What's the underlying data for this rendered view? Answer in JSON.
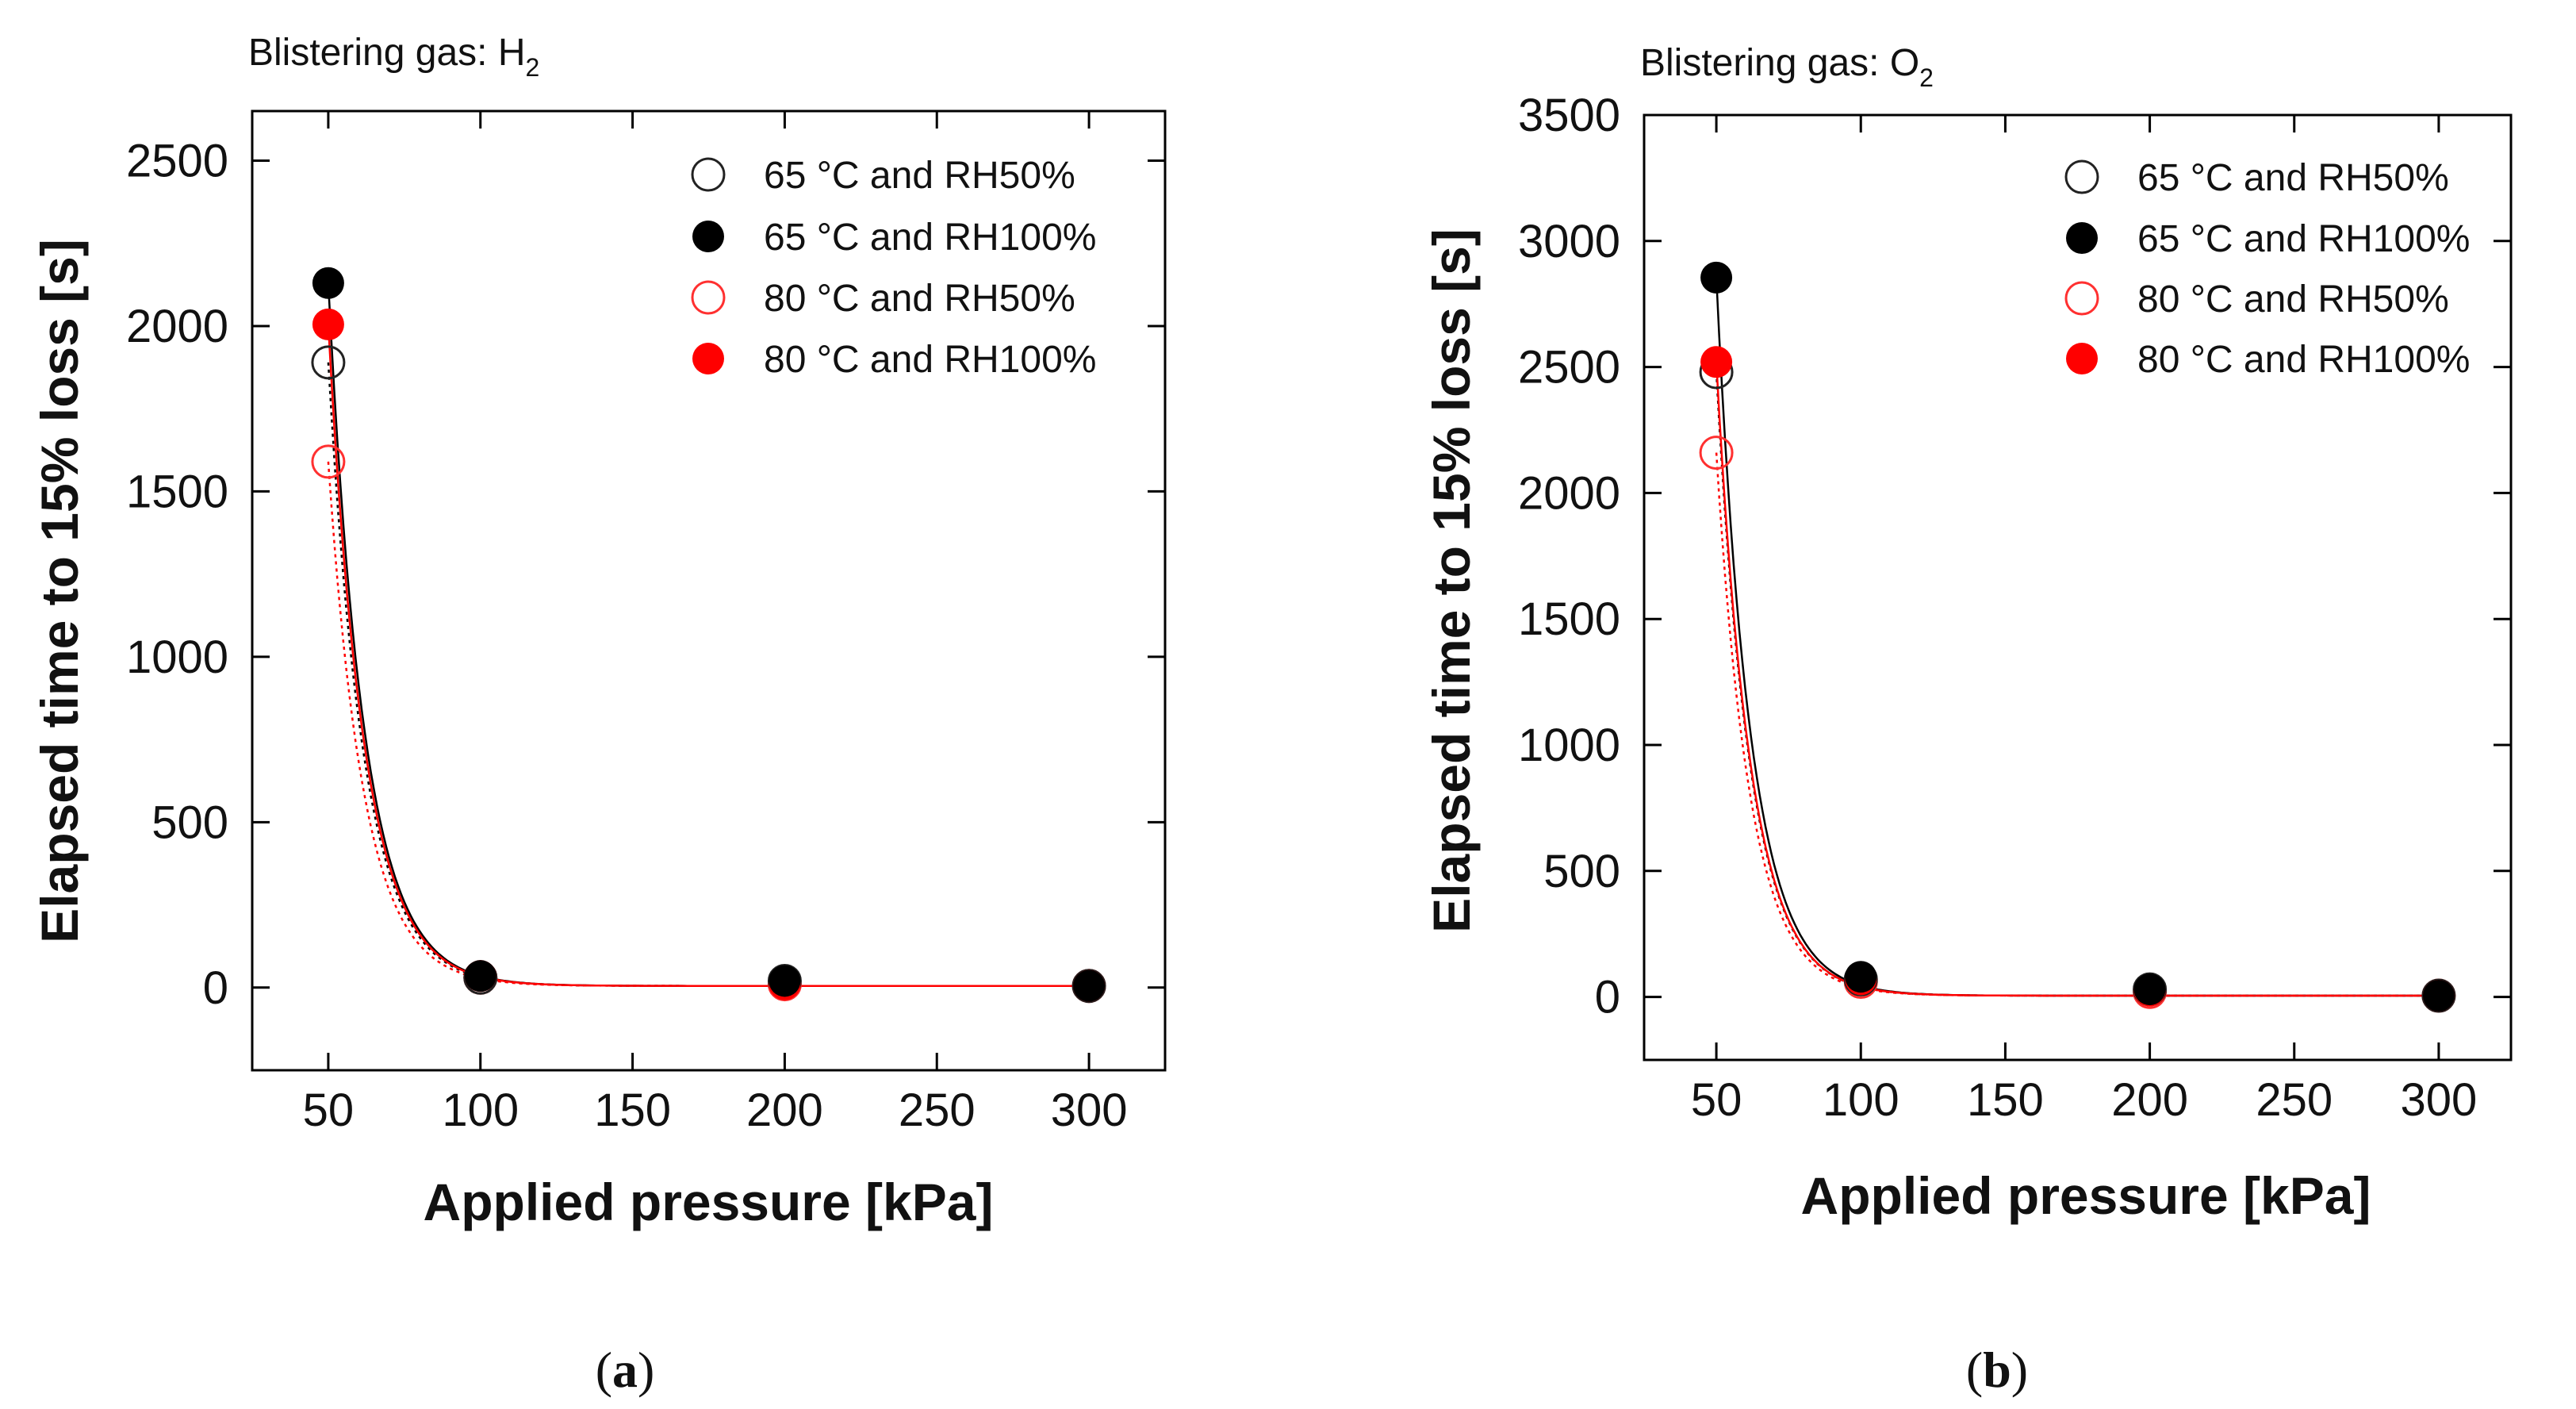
{
  "chart_data": [
    {
      "type": "scatter",
      "panel_label": "a",
      "gas_prefix": "Blistering gas: H",
      "gas_sub": "2",
      "xlabel": "Applied pressure [kPa]",
      "ylabel": "Elapsed time to 15% loss [s]",
      "xlim": [
        25,
        325
      ],
      "ylim": [
        -250,
        2650
      ],
      "xticks": [
        50,
        100,
        150,
        200,
        250,
        300
      ],
      "yticks": [
        0,
        500,
        1000,
        1500,
        2000,
        2500
      ],
      "series": [
        {
          "name": "65 °C and RH50%",
          "marker": "open",
          "color": "#000000",
          "x": [
            50,
            100,
            200,
            300
          ],
          "y": [
            1890,
            30,
            20,
            5
          ]
        },
        {
          "name": "65 °C and RH100%",
          "marker": "filled",
          "color": "#000000",
          "x": [
            50,
            100,
            200,
            300
          ],
          "y": [
            2130,
            35,
            20,
            5
          ]
        },
        {
          "name": "80 °C and RH50%",
          "marker": "open",
          "color": "#ff0000",
          "x": [
            50,
            100,
            200,
            300
          ],
          "y": [
            1590,
            30,
            10,
            5
          ]
        },
        {
          "name": "80 °C and RH100%",
          "marker": "filled",
          "color": "#ff0000",
          "x": [
            50,
            100,
            200,
            300
          ],
          "y": [
            2005,
            35,
            10,
            5
          ]
        }
      ]
    },
    {
      "type": "scatter",
      "panel_label": "b",
      "gas_prefix": "Blistering gas: O",
      "gas_sub": "2",
      "xlabel": "Applied pressure [kPa]",
      "ylabel": "Elapsed time to 15% loss [s]",
      "xlim": [
        25,
        325
      ],
      "ylim": [
        -250,
        3500
      ],
      "xticks": [
        50,
        100,
        150,
        200,
        250,
        300
      ],
      "yticks": [
        0,
        500,
        1000,
        1500,
        2000,
        2500,
        3000,
        3500
      ],
      "series": [
        {
          "name": "65 °C and RH50%",
          "marker": "open",
          "color": "#000000",
          "x": [
            50,
            100,
            200,
            300
          ],
          "y": [
            2480,
            70,
            30,
            5
          ]
        },
        {
          "name": "65 °C and RH100%",
          "marker": "filled",
          "color": "#000000",
          "x": [
            50,
            100,
            200,
            300
          ],
          "y": [
            2855,
            80,
            30,
            5
          ]
        },
        {
          "name": "80 °C and RH50%",
          "marker": "open",
          "color": "#ff0000",
          "x": [
            50,
            100,
            200,
            300
          ],
          "y": [
            2160,
            60,
            20,
            5
          ]
        },
        {
          "name": "80 °C and RH100%",
          "marker": "filled",
          "color": "#ff0000",
          "x": [
            50,
            100,
            200,
            300
          ],
          "y": [
            2520,
            70,
            25,
            5
          ]
        }
      ]
    }
  ]
}
